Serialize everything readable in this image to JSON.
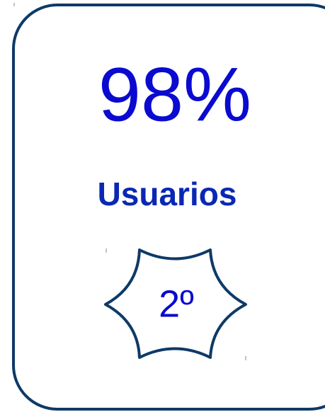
{
  "card": {
    "value": "98%",
    "label": "Usuarios",
    "rank": "2º"
  }
}
